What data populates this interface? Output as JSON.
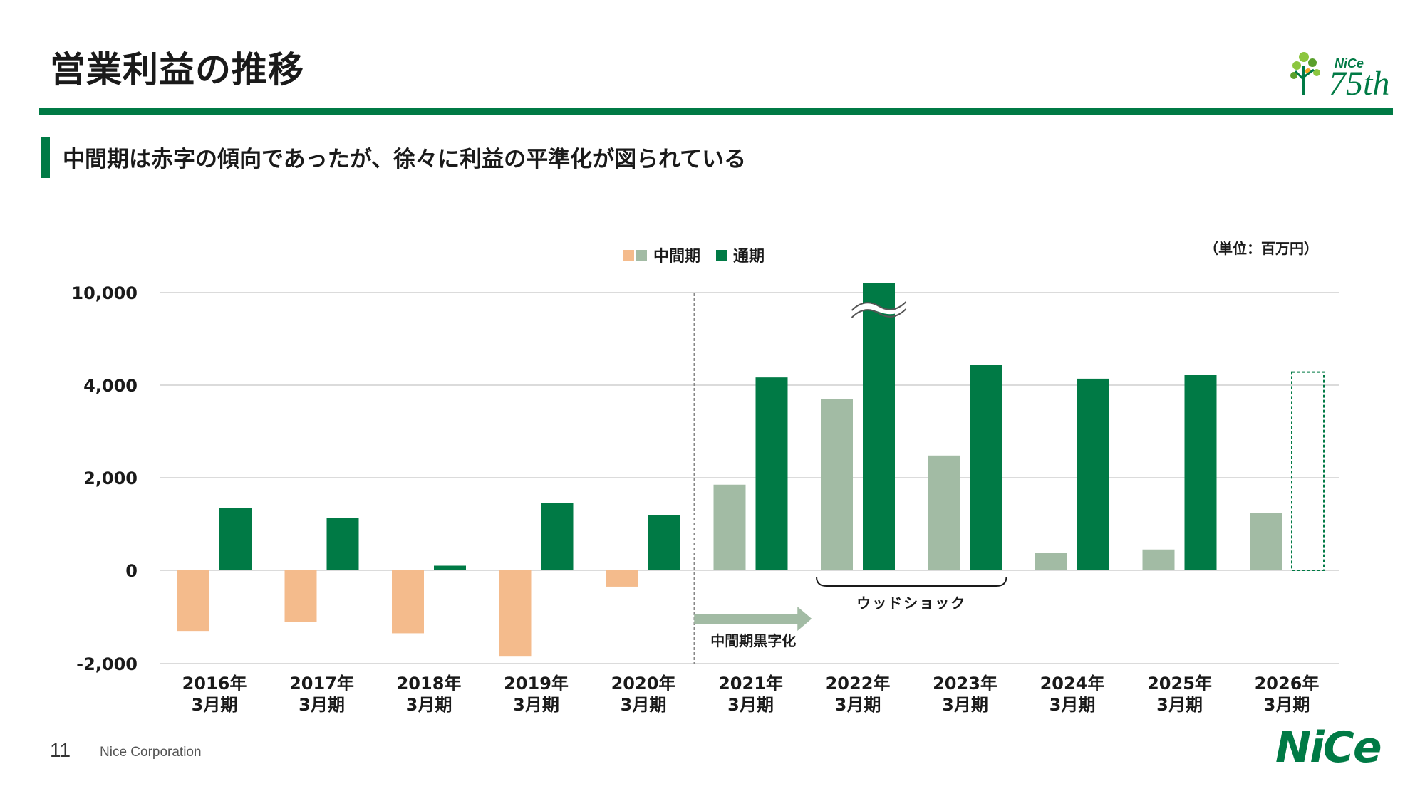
{
  "header": {
    "title": "営業利益の推移",
    "subtitle": "中間期は赤字の傾向であったが、徐々に利益の平準化が図られている"
  },
  "logos": {
    "anniversary_brand": "NiCe",
    "anniversary_number": "75th",
    "brand": "NiCe"
  },
  "footer": {
    "page_number": "11",
    "company": "Nice Corporation"
  },
  "chart_data": {
    "type": "bar",
    "categories": [
      "2016年\n3月期",
      "2017年\n3月期",
      "2018年\n3月期",
      "2019年\n3月期",
      "2020年\n3月期",
      "2021年\n3月期",
      "2022年\n3月期",
      "2023年\n3月期",
      "2024年\n3月期",
      "2025年\n3月期",
      "2026年\n3月期"
    ],
    "series": [
      {
        "name": "中間期",
        "values": [
          -1300,
          -1100,
          -1350,
          -1850,
          -350,
          1850,
          3700,
          2480,
          380,
          450,
          1240
        ]
      },
      {
        "name": "通期",
        "values": [
          1350,
          1130,
          100,
          1460,
          1200,
          4500,
          10000,
          5300,
          4420,
          4650,
          4850
        ]
      }
    ],
    "colors": {
      "interim_negative": "#f4bb8c",
      "interim_positive": "#a2bba4",
      "full_year": "#007a45",
      "forecast_outline": "#007a45"
    },
    "legend": {
      "interim_label": "中間期",
      "full_label": "通期",
      "position": "top-center"
    },
    "unit": "（単位：百万円）",
    "y_ticks": [
      {
        "value": 10000,
        "label": "10,000"
      },
      {
        "value": 4000,
        "label": "4,000"
      },
      {
        "value": 2000,
        "label": "2,000"
      },
      {
        "value": 0,
        "label": "0"
      },
      {
        "value": -2000,
        "label": "-2,000"
      }
    ],
    "axis_break": "between 4,000 and 10,000",
    "grid": true,
    "forecast_category": "2026年\n3月期",
    "annotations": {
      "wood_shock": {
        "label": "ウッドショック",
        "from_category": "2022年\n3月期",
        "to_category": "2023年\n3月期"
      },
      "interim_profit": {
        "label": "中間期黒字化",
        "start_category": "2021年\n3月期"
      }
    }
  }
}
